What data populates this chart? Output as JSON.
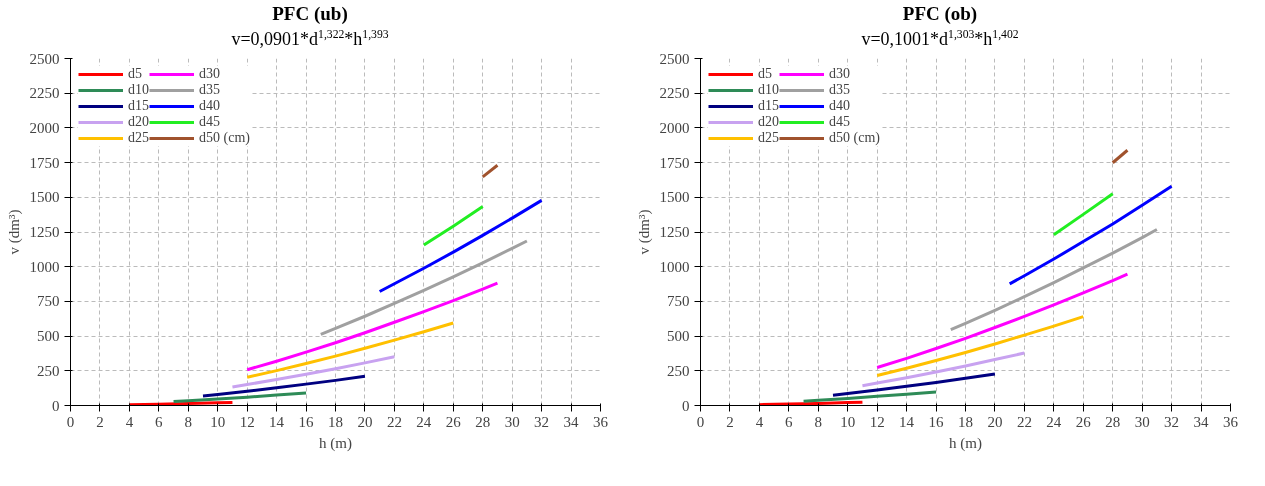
{
  "chart_data": [
    {
      "type": "line",
      "title": "PFC (ub)",
      "subtitle": "v=0,0901*d$^{1,322}$*h$^{1,393}$",
      "xlabel": "h (m)",
      "ylabel": "v (dm³)",
      "xlim": [
        0,
        36
      ],
      "xticks": [
        0,
        2,
        4,
        6,
        8,
        10,
        12,
        14,
        16,
        18,
        20,
        22,
        24,
        26,
        28,
        30,
        32,
        34,
        36
      ],
      "ylim": [
        0,
        2500
      ],
      "yticks": [
        0,
        250,
        500,
        750,
        1000,
        1250,
        1500,
        1750,
        2000,
        2250,
        2500
      ],
      "grid": true,
      "legend": "top left",
      "line_style": "solid",
      "marker": "none",
      "series": [
        {
          "name": "d5",
          "color": "#ff0000",
          "x": [
            4,
            6,
            8,
            10,
            11
          ],
          "values": [
            5,
            9,
            14,
            19,
            21
          ]
        },
        {
          "name": "d10",
          "color": "#2e8b57",
          "x": [
            7,
            8,
            10,
            12,
            14,
            16
          ],
          "values": [
            28,
            34,
            47,
            60,
            75,
            90
          ]
        },
        {
          "name": "d15",
          "color": "#000080",
          "x": [
            9,
            10,
            12,
            14,
            16,
            18,
            20
          ],
          "values": [
            69,
            80,
            103,
            128,
            154,
            181,
            210
          ]
        },
        {
          "name": "d20",
          "color": "#c8a2f0",
          "x": [
            11,
            12,
            14,
            16,
            18,
            20,
            22
          ],
          "values": [
            134,
            151,
            187,
            225,
            265,
            307,
            351
          ]
        },
        {
          "name": "d25",
          "color": "#ffc000",
          "x": [
            12,
            14,
            16,
            18,
            20,
            22,
            24,
            26
          ],
          "values": [
            203,
            251,
            302,
            356,
            412,
            471,
            531,
            594
          ]
        },
        {
          "name": "d30",
          "color": "#ff00ff",
          "x": [
            12,
            14,
            16,
            18,
            20,
            22,
            24,
            26,
            28,
            29
          ],
          "values": [
            258,
            319,
            385,
            452,
            524,
            600,
            676,
            755,
            838,
            881
          ]
        },
        {
          "name": "d35",
          "color": "#a0a0a0",
          "x": [
            17,
            18,
            20,
            22,
            24,
            26,
            28,
            30,
            31
          ],
          "values": [
            513,
            555,
            643,
            735,
            829,
            927,
            1028,
            1132,
            1185
          ]
        },
        {
          "name": "d40",
          "color": "#0000ff",
          "x": [
            21,
            22,
            24,
            26,
            28,
            30,
            32
          ],
          "values": [
            821,
            877,
            989,
            1105,
            1226,
            1350,
            1478
          ]
        },
        {
          "name": "d45",
          "color": "#22ee22",
          "x": [
            24,
            26,
            28
          ],
          "values": [
            1157,
            1292,
            1433
          ]
        },
        {
          "name": "d50 (cm)",
          "color": "#a0522d",
          "x": [
            28,
            29
          ],
          "values": [
            1647,
            1731
          ]
        }
      ]
    },
    {
      "type": "line",
      "title": "PFC (ob)",
      "subtitle": "v=0,1001*d$^{1,303}$*h$^{1,402}$",
      "xlabel": "h (m)",
      "ylabel": "v (dm³)",
      "xlim": [
        0,
        36
      ],
      "xticks": [
        0,
        2,
        4,
        6,
        8,
        10,
        12,
        14,
        16,
        18,
        20,
        22,
        24,
        26,
        28,
        30,
        32,
        34,
        36
      ],
      "ylim": [
        0,
        2500
      ],
      "yticks": [
        0,
        250,
        500,
        750,
        1000,
        1250,
        1500,
        1750,
        2000,
        2250,
        2500
      ],
      "grid": true,
      "legend": "top left",
      "line_style": "solid",
      "marker": "none",
      "series": [
        {
          "name": "d5",
          "color": "#ff0000",
          "x": [
            4,
            6,
            8,
            10,
            11
          ],
          "values": [
            6,
            10,
            15,
            21,
            24
          ]
        },
        {
          "name": "d10",
          "color": "#2e8b57",
          "x": [
            7,
            8,
            10,
            12,
            14,
            16
          ],
          "values": [
            31,
            37,
            51,
            66,
            81,
            98
          ]
        },
        {
          "name": "d15",
          "color": "#000080",
          "x": [
            9,
            10,
            12,
            14,
            16,
            18,
            20
          ],
          "values": [
            74,
            86,
            111,
            138,
            166,
            196,
            227
          ]
        },
        {
          "name": "d20",
          "color": "#c8a2f0",
          "x": [
            11,
            12,
            14,
            16,
            18,
            20,
            22
          ],
          "values": [
            143,
            162,
            200,
            242,
            285,
            331,
            378
          ]
        },
        {
          "name": "d25",
          "color": "#ffc000",
          "x": [
            12,
            14,
            16,
            18,
            20,
            22,
            24,
            26
          ],
          "values": [
            216,
            268,
            324,
            382,
            443,
            507,
            572,
            640
          ]
        },
        {
          "name": "d30",
          "color": "#ff00ff",
          "x": [
            12,
            14,
            16,
            18,
            20,
            22,
            24,
            26,
            28,
            29
          ],
          "values": [
            274,
            340,
            411,
            484,
            562,
            642,
            725,
            812,
            899,
            946
          ]
        },
        {
          "name": "d35",
          "color": "#a0a0a0",
          "x": [
            17,
            18,
            20,
            22,
            24,
            26,
            28,
            30,
            31
          ],
          "values": [
            546,
            591,
            686,
            784,
            885,
            991,
            1098,
            1210,
            1268
          ]
        },
        {
          "name": "d40",
          "color": "#0000ff",
          "x": [
            21,
            22,
            24,
            26,
            28,
            30,
            32
          ],
          "values": [
            876,
            935,
            1055,
            1181,
            1308,
            1442,
            1579
          ]
        },
        {
          "name": "d45",
          "color": "#22ee22",
          "x": [
            24,
            26,
            28
          ],
          "values": [
            1230,
            1377,
            1525
          ]
        },
        {
          "name": "d50 (cm)",
          "color": "#a0522d",
          "x": [
            28,
            29
          ],
          "values": [
            1749,
            1839
          ]
        }
      ]
    }
  ]
}
